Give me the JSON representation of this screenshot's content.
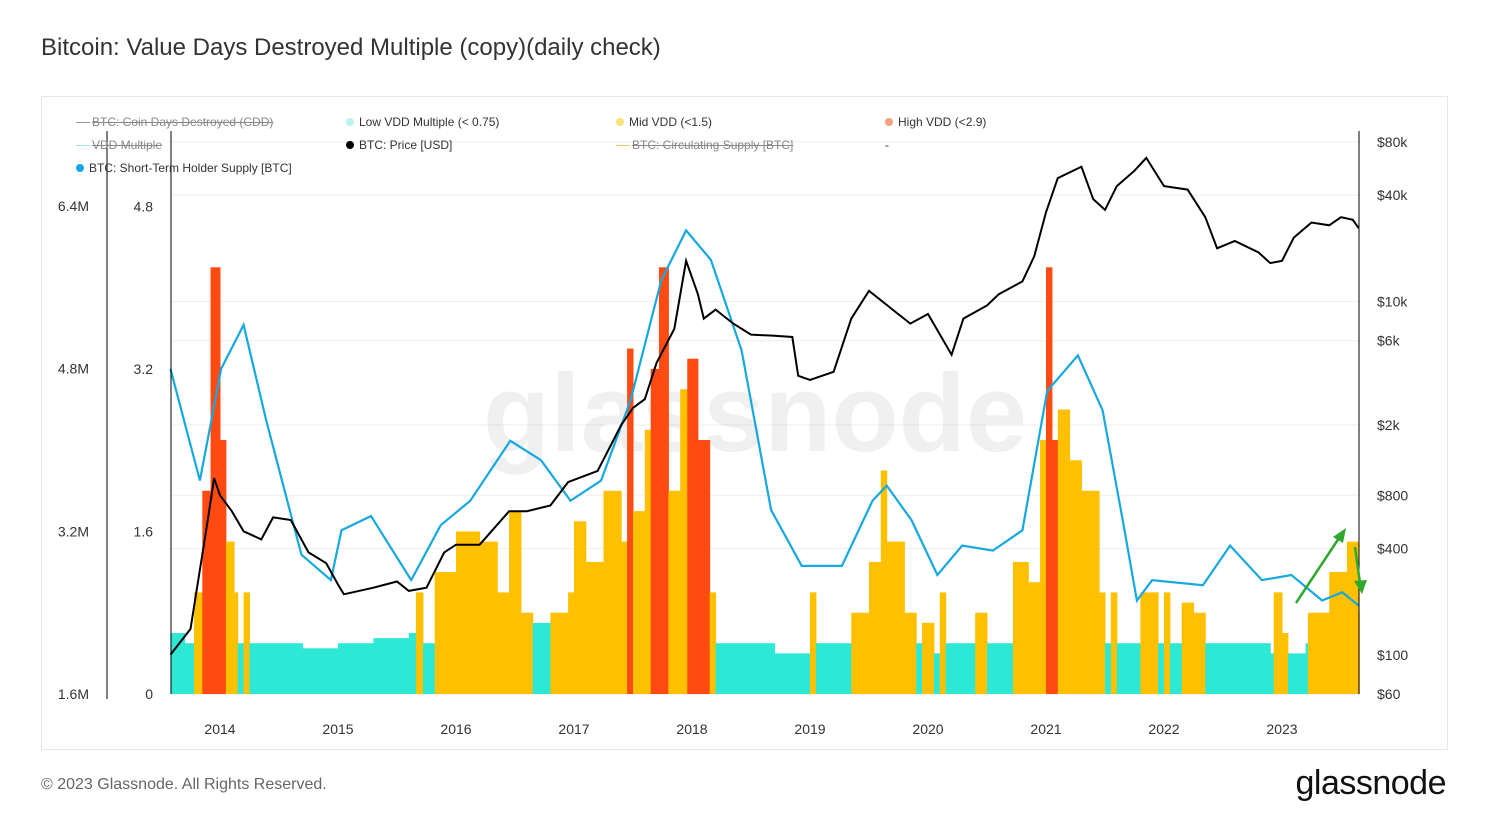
{
  "title": "Bitcoin: Value Days Destroyed Multiple (copy)(daily check)",
  "footer": "© 2023 Glassnode. All Rights Reserved.",
  "logo": "glassnode",
  "watermark": "glassnode",
  "legend": [
    {
      "label": "BTC: Coin Days Destroyed (CDD)",
      "marker": "line",
      "color": "#999999",
      "hidden": true
    },
    {
      "label": "Low VDD Multiple (< 0.75)",
      "marker": "dot",
      "color": "#b8f3ec",
      "hidden": false
    },
    {
      "label": "Mid VDD (<1.5)",
      "marker": "dot",
      "color": "#f8e27a",
      "hidden": false
    },
    {
      "label": "High VDD (<2.9)",
      "marker": "dot",
      "color": "#f5a080",
      "hidden": false
    },
    {
      "label": "VDD Multiple",
      "marker": "line",
      "color": "#9fe8e0",
      "hidden": true
    },
    {
      "label": "BTC: Price [USD]",
      "marker": "dot",
      "color": "#000000",
      "hidden": false
    },
    {
      "label": "BTC: Circulating Supply [BTC]",
      "marker": "line",
      "color": "#e8c870",
      "hidden": true
    },
    {
      "label": "-",
      "marker": "none",
      "color": "#999999",
      "hidden": false
    },
    {
      "label": "BTC: Short-Term Holder Supply [BTC]",
      "marker": "dot",
      "color": "#16a8e0",
      "hidden": false
    }
  ],
  "chart_data": {
    "type": "line",
    "title": "Bitcoin: Value Days Destroyed Multiple (copy)(daily check)",
    "x_ticks": [
      "2014",
      "2015",
      "2016",
      "2017",
      "2018",
      "2019",
      "2020",
      "2021",
      "2022",
      "2023"
    ],
    "x_range": [
      2013.58,
      2023.65
    ],
    "axes": {
      "supply": {
        "ticks": [
          "1.6M",
          "3.2M",
          "4.8M",
          "6.4M"
        ],
        "range": [
          1.6,
          6.4
        ],
        "unit": "M BTC",
        "position": "left-outer"
      },
      "vdd": {
        "ticks": [
          "0",
          "1.6",
          "3.2",
          "4.8"
        ],
        "range": [
          0,
          4.8
        ],
        "position": "left-inner"
      },
      "price": {
        "ticks": [
          "$60",
          "$100",
          "$400",
          "$800",
          "$2k",
          "$6k",
          "$10k",
          "$40k",
          "$80k"
        ],
        "tick_values": [
          60,
          100,
          400,
          800,
          2000,
          6000,
          10000,
          40000,
          80000
        ],
        "scale": "log",
        "range": [
          60,
          80000
        ],
        "position": "right"
      }
    },
    "colors": {
      "low": "#2ee8d6",
      "mid": "#ffc000",
      "high": "#ff4a12",
      "price": "#000000",
      "sth": "#16a8e0",
      "arrow": "#2ea82e"
    },
    "vdd_multiple": [
      [
        2013.58,
        0.6,
        "L"
      ],
      [
        2013.7,
        0.5,
        "L"
      ],
      [
        2013.78,
        1.0,
        "M"
      ],
      [
        2013.85,
        2.0,
        "H"
      ],
      [
        2013.92,
        4.2,
        "H"
      ],
      [
        2014.0,
        2.5,
        "H"
      ],
      [
        2014.05,
        1.5,
        "M"
      ],
      [
        2014.12,
        1.0,
        "M"
      ],
      [
        2014.15,
        0.5,
        "L"
      ],
      [
        2014.2,
        1.0,
        "M"
      ],
      [
        2014.25,
        0.5,
        "L"
      ],
      [
        2014.4,
        0.5,
        "L"
      ],
      [
        2014.7,
        0.45,
        "L"
      ],
      [
        2015.0,
        0.5,
        "L"
      ],
      [
        2015.3,
        0.55,
        "L"
      ],
      [
        2015.6,
        0.6,
        "L"
      ],
      [
        2015.66,
        1.0,
        "M"
      ],
      [
        2015.72,
        0.5,
        "L"
      ],
      [
        2015.82,
        1.2,
        "M"
      ],
      [
        2016.0,
        1.6,
        "M"
      ],
      [
        2016.2,
        1.5,
        "M"
      ],
      [
        2016.35,
        1.0,
        "M"
      ],
      [
        2016.45,
        1.8,
        "M"
      ],
      [
        2016.55,
        0.8,
        "M"
      ],
      [
        2016.65,
        0.7,
        "L"
      ],
      [
        2016.8,
        0.8,
        "M"
      ],
      [
        2016.95,
        1.0,
        "M"
      ],
      [
        2017.0,
        1.7,
        "M"
      ],
      [
        2017.1,
        1.3,
        "M"
      ],
      [
        2017.25,
        2.0,
        "M"
      ],
      [
        2017.4,
        1.5,
        "M"
      ],
      [
        2017.45,
        3.4,
        "H"
      ],
      [
        2017.5,
        1.8,
        "M"
      ],
      [
        2017.6,
        2.6,
        "M"
      ],
      [
        2017.65,
        3.2,
        "H"
      ],
      [
        2017.72,
        4.2,
        "H"
      ],
      [
        2017.8,
        2.0,
        "M"
      ],
      [
        2017.9,
        3.0,
        "M"
      ],
      [
        2017.96,
        3.3,
        "H"
      ],
      [
        2018.05,
        2.5,
        "H"
      ],
      [
        2018.15,
        1.0,
        "M"
      ],
      [
        2018.2,
        0.5,
        "L"
      ],
      [
        2018.4,
        0.5,
        "L"
      ],
      [
        2018.7,
        0.4,
        "L"
      ],
      [
        2018.95,
        0.4,
        "L"
      ],
      [
        2019.0,
        1.0,
        "M"
      ],
      [
        2019.05,
        0.5,
        "L"
      ],
      [
        2019.3,
        0.5,
        "L"
      ],
      [
        2019.35,
        0.8,
        "M"
      ],
      [
        2019.5,
        1.3,
        "M"
      ],
      [
        2019.6,
        2.2,
        "M"
      ],
      [
        2019.65,
        1.5,
        "M"
      ],
      [
        2019.8,
        0.8,
        "M"
      ],
      [
        2019.9,
        0.5,
        "L"
      ],
      [
        2019.95,
        0.7,
        "M"
      ],
      [
        2020.05,
        0.4,
        "L"
      ],
      [
        2020.1,
        1.0,
        "M"
      ],
      [
        2020.15,
        0.5,
        "L"
      ],
      [
        2020.3,
        0.5,
        "L"
      ],
      [
        2020.4,
        0.8,
        "M"
      ],
      [
        2020.5,
        0.5,
        "L"
      ],
      [
        2020.6,
        0.5,
        "L"
      ],
      [
        2020.72,
        1.3,
        "M"
      ],
      [
        2020.85,
        1.1,
        "M"
      ],
      [
        2020.95,
        2.5,
        "M"
      ],
      [
        2021.0,
        4.2,
        "H"
      ],
      [
        2021.05,
        2.5,
        "H"
      ],
      [
        2021.1,
        2.8,
        "M"
      ],
      [
        2021.2,
        2.3,
        "M"
      ],
      [
        2021.3,
        2.0,
        "M"
      ],
      [
        2021.45,
        1.0,
        "M"
      ],
      [
        2021.5,
        0.5,
        "L"
      ],
      [
        2021.55,
        1.0,
        "M"
      ],
      [
        2021.6,
        0.5,
        "L"
      ],
      [
        2021.8,
        1.0,
        "M"
      ],
      [
        2021.95,
        0.5,
        "L"
      ],
      [
        2022.0,
        1.0,
        "M"
      ],
      [
        2022.05,
        0.5,
        "L"
      ],
      [
        2022.15,
        0.9,
        "M"
      ],
      [
        2022.25,
        0.8,
        "M"
      ],
      [
        2022.35,
        0.5,
        "L"
      ],
      [
        2022.5,
        0.5,
        "L"
      ],
      [
        2022.9,
        0.4,
        "L"
      ],
      [
        2022.93,
        1.0,
        "M"
      ],
      [
        2023.0,
        0.6,
        "M"
      ],
      [
        2023.05,
        0.4,
        "L"
      ],
      [
        2023.2,
        0.5,
        "L"
      ],
      [
        2023.22,
        0.8,
        "M"
      ],
      [
        2023.4,
        1.2,
        "M"
      ],
      [
        2023.55,
        1.5,
        "M"
      ],
      [
        2023.65,
        0.8,
        "M"
      ]
    ],
    "price_usd": [
      [
        2013.58,
        100
      ],
      [
        2013.75,
        140
      ],
      [
        2013.9,
        600
      ],
      [
        2013.95,
        1000
      ],
      [
        2014.0,
        800
      ],
      [
        2014.1,
        650
      ],
      [
        2014.2,
        500
      ],
      [
        2014.35,
        450
      ],
      [
        2014.45,
        600
      ],
      [
        2014.6,
        580
      ],
      [
        2014.75,
        380
      ],
      [
        2014.9,
        330
      ],
      [
        2015.0,
        250
      ],
      [
        2015.05,
        220
      ],
      [
        2015.3,
        240
      ],
      [
        2015.5,
        260
      ],
      [
        2015.6,
        230
      ],
      [
        2015.75,
        240
      ],
      [
        2015.9,
        380
      ],
      [
        2016.0,
        420
      ],
      [
        2016.2,
        420
      ],
      [
        2016.45,
        650
      ],
      [
        2016.6,
        650
      ],
      [
        2016.8,
        700
      ],
      [
        2016.95,
        950
      ],
      [
        2017.2,
        1100
      ],
      [
        2017.4,
        2000
      ],
      [
        2017.5,
        2500
      ],
      [
        2017.6,
        2800
      ],
      [
        2017.7,
        4500
      ],
      [
        2017.85,
        7000
      ],
      [
        2017.95,
        17000
      ],
      [
        2018.05,
        11000
      ],
      [
        2018.1,
        8000
      ],
      [
        2018.2,
        9000
      ],
      [
        2018.35,
        7500
      ],
      [
        2018.5,
        6500
      ],
      [
        2018.7,
        6400
      ],
      [
        2018.85,
        6300
      ],
      [
        2018.9,
        3800
      ],
      [
        2019.0,
        3600
      ],
      [
        2019.2,
        4000
      ],
      [
        2019.35,
        8000
      ],
      [
        2019.5,
        11500
      ],
      [
        2019.7,
        9000
      ],
      [
        2019.85,
        7500
      ],
      [
        2020.0,
        8500
      ],
      [
        2020.2,
        5000
      ],
      [
        2020.3,
        8000
      ],
      [
        2020.5,
        9500
      ],
      [
        2020.6,
        11000
      ],
      [
        2020.8,
        13000
      ],
      [
        2020.9,
        18000
      ],
      [
        2021.0,
        32000
      ],
      [
        2021.1,
        50000
      ],
      [
        2021.3,
        58000
      ],
      [
        2021.4,
        38000
      ],
      [
        2021.5,
        33000
      ],
      [
        2021.6,
        45000
      ],
      [
        2021.75,
        55000
      ],
      [
        2021.85,
        65000
      ],
      [
        2022.0,
        45000
      ],
      [
        2022.2,
        43000
      ],
      [
        2022.35,
        30000
      ],
      [
        2022.45,
        20000
      ],
      [
        2022.6,
        22000
      ],
      [
        2022.8,
        19000
      ],
      [
        2022.9,
        16500
      ],
      [
        2023.0,
        17000
      ],
      [
        2023.1,
        23000
      ],
      [
        2023.25,
        28000
      ],
      [
        2023.4,
        27000
      ],
      [
        2023.5,
        30000
      ],
      [
        2023.6,
        29000
      ],
      [
        2023.65,
        26000
      ]
    ],
    "sth_supply_m": [
      [
        2013.58,
        4.8
      ],
      [
        2013.83,
        3.7
      ],
      [
        2014.01,
        4.8
      ],
      [
        2014.2,
        5.23
      ],
      [
        2014.39,
        4.3
      ],
      [
        2014.69,
        2.97
      ],
      [
        2014.94,
        2.72
      ],
      [
        2015.03,
        3.21
      ],
      [
        2015.28,
        3.35
      ],
      [
        2015.62,
        2.72
      ],
      [
        2015.87,
        3.26
      ],
      [
        2016.12,
        3.5
      ],
      [
        2016.46,
        4.09
      ],
      [
        2016.72,
        3.9
      ],
      [
        2016.97,
        3.5
      ],
      [
        2017.23,
        3.7
      ],
      [
        2017.48,
        4.49
      ],
      [
        2017.74,
        5.67
      ],
      [
        2017.95,
        6.16
      ],
      [
        2018.16,
        5.87
      ],
      [
        2018.42,
        4.98
      ],
      [
        2018.67,
        3.41
      ],
      [
        2018.93,
        2.86
      ],
      [
        2019.27,
        2.86
      ],
      [
        2019.53,
        3.5
      ],
      [
        2019.65,
        3.65
      ],
      [
        2019.86,
        3.31
      ],
      [
        2020.08,
        2.77
      ],
      [
        2020.29,
        3.06
      ],
      [
        2020.55,
        3.01
      ],
      [
        2020.8,
        3.21
      ],
      [
        2021.01,
        4.58
      ],
      [
        2021.27,
        4.93
      ],
      [
        2021.48,
        4.39
      ],
      [
        2021.65,
        3.31
      ],
      [
        2021.77,
        2.52
      ],
      [
        2021.9,
        2.72
      ],
      [
        2022.33,
        2.67
      ],
      [
        2022.56,
        3.06
      ],
      [
        2022.83,
        2.72
      ],
      [
        2023.08,
        2.77
      ],
      [
        2023.34,
        2.52
      ],
      [
        2023.51,
        2.6
      ],
      [
        2023.65,
        2.47
      ]
    ]
  }
}
